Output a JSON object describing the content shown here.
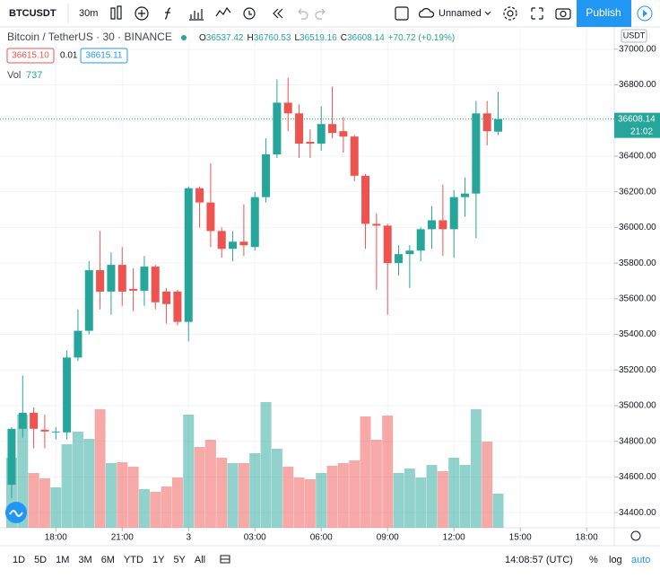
{
  "toolbar": {
    "symbol": "BTCUSDT",
    "interval": "30m",
    "layout": "Unnamed",
    "publish": "Publish"
  },
  "legend": {
    "title": "Bitcoin / TetherUS · 30 · BINANCE",
    "ohlc_labels": [
      "O",
      "H",
      "L",
      "C"
    ],
    "change": "+70.72 (+0.19%)",
    "bid": "36615.10",
    "spread": "0.01",
    "ask": "36615.11",
    "volume_label": "Vol"
  },
  "chart_data": {
    "type": "candlestick",
    "open": [
      34556,
      34870,
      34960,
      34865,
      34850,
      34850,
      35270,
      35420,
      35760,
      35640,
      35790,
      35655,
      35645,
      35780,
      35640,
      35640,
      35470,
      36220,
      36140,
      35980,
      35880,
      35920,
      35890,
      36170,
      36410,
      36700,
      36640,
      36480,
      36470,
      36580,
      36540,
      36510,
      36290,
      36020,
      36010,
      35800,
      35850,
      35870,
      35990,
      36040,
      35990,
      36170,
      36190,
      36640,
      36537.42
    ],
    "high": [
      34880,
      35170,
      34990,
      34950,
      34880,
      35310,
      35540,
      35810,
      35980,
      35860,
      35890,
      35770,
      35840,
      35790,
      35660,
      35650,
      36230,
      36230,
      36360,
      36000,
      35980,
      36130,
      36200,
      36500,
      36830,
      36840,
      36690,
      36550,
      36680,
      36790,
      36620,
      36520,
      36300,
      36080,
      36020,
      35900,
      35900,
      36000,
      36120,
      36240,
      36210,
      36280,
      36710,
      36710,
      36760.53
    ],
    "low": [
      34480,
      34820,
      34760,
      34760,
      34810,
      34810,
      35250,
      35400,
      35540,
      35510,
      35560,
      35530,
      35560,
      35540,
      35460,
      35450,
      35360,
      36000,
      35890,
      35830,
      35810,
      35840,
      35870,
      36140,
      36390,
      36540,
      36390,
      36390,
      36430,
      36500,
      36420,
      36260,
      35880,
      35650,
      35510,
      35730,
      35660,
      35810,
      35880,
      35840,
      35830,
      36060,
      35940,
      36460,
      36519.16
    ],
    "close": [
      34870,
      34960,
      34870,
      34855,
      34855,
      35270,
      35420,
      35760,
      35640,
      35790,
      35640,
      35645,
      35780,
      35580,
      35570,
      35470,
      36220,
      36140,
      35980,
      35880,
      35920,
      35900,
      36170,
      36410,
      36700,
      36640,
      36470,
      36470,
      36580,
      36530,
      36510,
      36290,
      36020,
      36010,
      35800,
      35850,
      35870,
      35990,
      36040,
      35990,
      36170,
      36190,
      36640,
      36540,
      36608.14
    ],
    "volume": [
      1513,
      2444,
      1183,
      1067,
      873,
      1804,
      2076,
      1921,
      2561,
      1397,
      1416,
      1319,
      834,
      776,
      892,
      1086,
      2444,
      1746,
      1901,
      1513,
      1397,
      1397,
      1610,
      2716,
      1707,
      1319,
      1086,
      1048,
      1183,
      1339,
      1397,
      1455,
      2406,
      1901,
      2425,
      1183,
      1280,
      1086,
      1358,
      1222,
      1513,
      1358,
      2561,
      1862,
      737
    ],
    "up_color": "#26a69a",
    "down_color": "#ef5350",
    "xlim": [
      -1.05,
      54.5
    ],
    "xticks": [
      {
        "value": 4,
        "label": "18:00"
      },
      {
        "value": 10,
        "label": "21:00"
      },
      {
        "value": 16,
        "label": "3"
      },
      {
        "value": 22,
        "label": "03:00"
      },
      {
        "value": 28,
        "label": "06:00"
      },
      {
        "value": 34,
        "label": "09:00"
      },
      {
        "value": 40,
        "label": "12:00"
      },
      {
        "value": 46,
        "label": "15:00"
      },
      {
        "value": 52,
        "label": "18:00"
      }
    ],
    "ylim": [
      34315,
      37125
    ],
    "yticks": [
      {
        "value": 34400,
        "label": "34400.00"
      },
      {
        "value": 34600,
        "label": "34600.00"
      },
      {
        "value": 34800,
        "label": "34800.00"
      },
      {
        "value": 35000,
        "label": "35000.00"
      },
      {
        "value": 35200,
        "label": "35200.00"
      },
      {
        "value": 35400,
        "label": "35400.00"
      },
      {
        "value": 35600,
        "label": "35600.00"
      },
      {
        "value": 35800,
        "label": "35800.00"
      },
      {
        "value": 36000,
        "label": "36000.00"
      },
      {
        "value": 36200,
        "label": "36200.00"
      },
      {
        "value": 36400,
        "label": "36400.00"
      },
      {
        "value": 36600,
        "label": "36600.00"
      },
      {
        "value": 36800,
        "label": "36800.00"
      },
      {
        "value": 37000,
        "label": "37000.00"
      }
    ],
    "volume_lim": [
      0,
      10825
    ],
    "currency": "USDT",
    "countdown": "21:02",
    "grid": true
  },
  "bottom_bar": {
    "ranges": [
      "1D",
      "5D",
      "1M",
      "3M",
      "6M",
      "YTD",
      "1Y",
      "5Y",
      "All"
    ],
    "clock": "14:08:57 (UTC)",
    "percent": "%",
    "log": "log",
    "auto": "auto"
  }
}
